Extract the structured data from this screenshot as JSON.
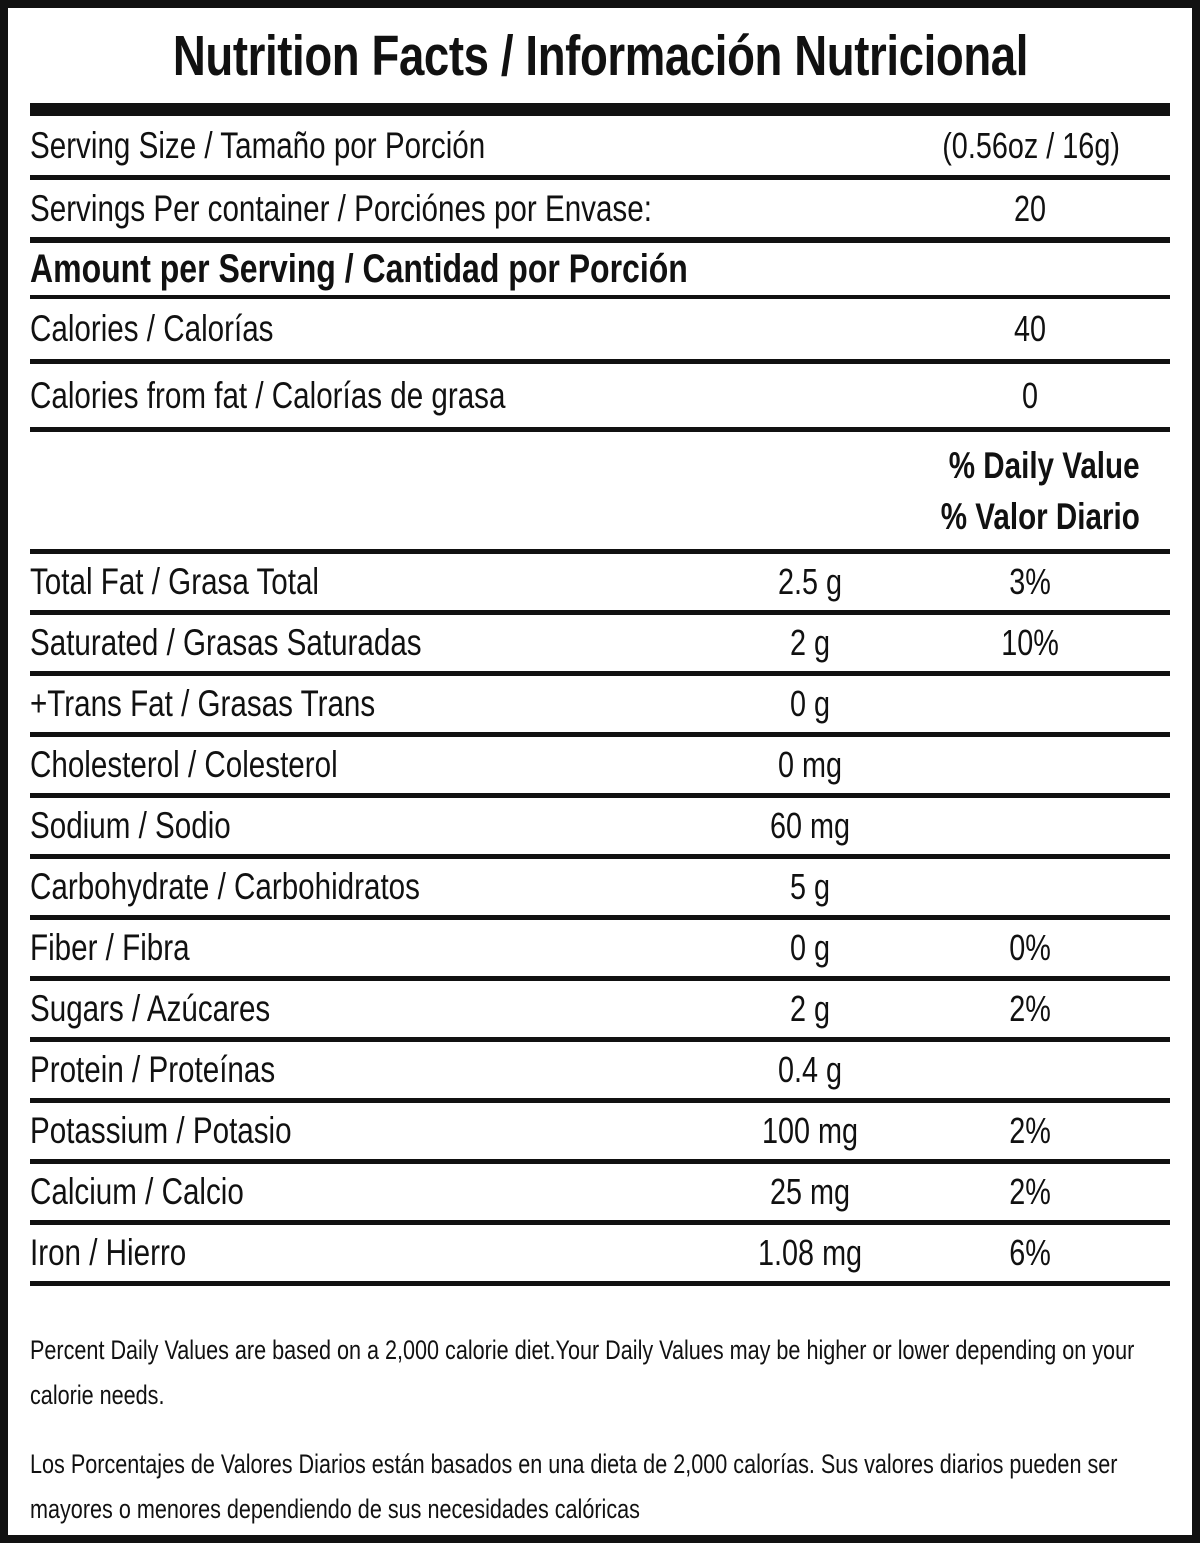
{
  "title": "Nutrition Facts / Información Nutricional",
  "serving_rows": [
    {
      "label": "Serving Size / Tamaño por Porción",
      "value": "(0.56oz / 16g)"
    },
    {
      "label": "Servings Per container / Porciónes por Envase:",
      "value": "20"
    }
  ],
  "amount_header": "Amount per Serving / Cantidad por Porción",
  "calorie_rows": [
    {
      "label": "Calories / Calorías",
      "value": "40"
    },
    {
      "label": "Calories from fat / Calorías de grasa",
      "value": "0"
    }
  ],
  "daily_value_header": {
    "line1": "% Daily Value",
    "line2": "% Valor Diario"
  },
  "nutrients": [
    {
      "label": "Total Fat / Grasa Total",
      "amount": "2.5 g",
      "dv": "3%"
    },
    {
      "label": "Saturated / Grasas Saturadas",
      "amount": "2 g",
      "dv": "10%"
    },
    {
      "label": "+Trans Fat / Grasas Trans",
      "amount": "0 g",
      "dv": ""
    },
    {
      "label": "Cholesterol / Colesterol",
      "amount": "0 mg",
      "dv": ""
    },
    {
      "label": "Sodium / Sodio",
      "amount": "60 mg",
      "dv": ""
    },
    {
      "label": "Carbohydrate / Carbohidratos",
      "amount": "5 g",
      "dv": ""
    },
    {
      "label": "Fiber / Fibra",
      "amount": "0 g",
      "dv": "0%"
    },
    {
      "label": "Sugars / Azúcares",
      "amount": "2 g",
      "dv": "2%"
    },
    {
      "label": "Protein / Proteínas",
      "amount": "0.4 g",
      "dv": ""
    },
    {
      "label": "Potassium / Potasio",
      "amount": "100 mg",
      "dv": "2%"
    },
    {
      "label": "Calcium / Calcio",
      "amount": "25 mg",
      "dv": "2%"
    },
    {
      "label": "Iron / Hierro",
      "amount": "1.08 mg",
      "dv": "6%"
    }
  ],
  "footnotes": {
    "en": "Percent Daily Values are based on a 2,000 calorie diet.Your Daily Values may be higher or lower depending on your calorie needs.",
    "es": "Los Porcentajes de Valores Diarios están basados en una dieta de 2,000 calorías. Sus valores diarios pueden ser mayores o menores dependiendo de sus necesidades calóricas"
  },
  "colors": {
    "ink": "#111111",
    "background": "#ffffff"
  }
}
